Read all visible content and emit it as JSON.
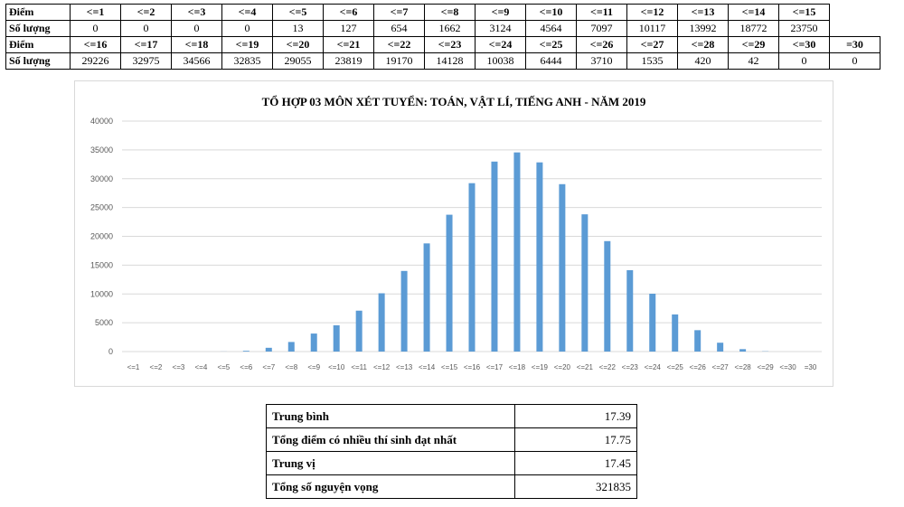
{
  "score_table": {
    "row_label_diem": "Điểm",
    "row_label_soluong": "Số lượng",
    "row1_headers": [
      "<=1",
      "<=2",
      "<=3",
      "<=4",
      "<=5",
      "<=6",
      "<=7",
      "<=8",
      "<=9",
      "<=10",
      "<=11",
      "<=12",
      "<=13",
      "<=14",
      "<=15"
    ],
    "row1_values": [
      "0",
      "0",
      "0",
      "0",
      "13",
      "127",
      "654",
      "1662",
      "3124",
      "4564",
      "7097",
      "10117",
      "13992",
      "18772",
      "23750"
    ],
    "row2_headers": [
      "<=16",
      "<=17",
      "<=18",
      "<=19",
      "<=20",
      "<=21",
      "<=22",
      "<=23",
      "<=24",
      "<=25",
      "<=26",
      "<=27",
      "<=28",
      "<=29",
      "<=30",
      "=30"
    ],
    "row2_values": [
      "29226",
      "32975",
      "34566",
      "32835",
      "29055",
      "23819",
      "19170",
      "14128",
      "10038",
      "6444",
      "3710",
      "1535",
      "420",
      "42",
      "0",
      "0"
    ]
  },
  "chart_data": {
    "type": "bar",
    "title": "TỔ HỢP 03 MÔN XÉT TUYỂN: TOÁN, VẬT LÍ, TIẾNG ANH - NĂM 2019",
    "categories": [
      "<=1",
      "<=2",
      "<=3",
      "<=4",
      "<=5",
      "<=6",
      "<=7",
      "<=8",
      "<=9",
      "<=10",
      "<=11",
      "<=12",
      "<=13",
      "<=14",
      "<=15",
      "<=16",
      "<=17",
      "<=18",
      "<=19",
      "<=20",
      "<=21",
      "<=22",
      "<=23",
      "<=24",
      "<=25",
      "<=26",
      "<=27",
      "<=28",
      "<=29",
      "<=30",
      "=30"
    ],
    "values": [
      0,
      0,
      0,
      0,
      13,
      127,
      654,
      1662,
      3124,
      4564,
      7097,
      10117,
      13992,
      18772,
      23750,
      29226,
      32975,
      34566,
      32835,
      29055,
      23819,
      19170,
      14128,
      10038,
      6444,
      3710,
      1535,
      420,
      42,
      0,
      0
    ],
    "ylim": [
      0,
      40000
    ],
    "yticks": [
      0,
      5000,
      10000,
      15000,
      20000,
      25000,
      30000,
      35000,
      40000
    ],
    "ytick_labels": [
      "0",
      "5000",
      "10000",
      "15000",
      "20000",
      "25000",
      "30000",
      "35000",
      "40000"
    ],
    "grid": true,
    "bar_color": "#5b9bd5"
  },
  "stats": [
    {
      "label": "Trung bình",
      "value": "17.39"
    },
    {
      "label": "Tổng điểm có nhiều thí sinh đạt nhất",
      "value": "17.75"
    },
    {
      "label": "Trung vị",
      "value": "17.45"
    },
    {
      "label": "Tổng số nguyện vọng",
      "value": "321835"
    }
  ]
}
